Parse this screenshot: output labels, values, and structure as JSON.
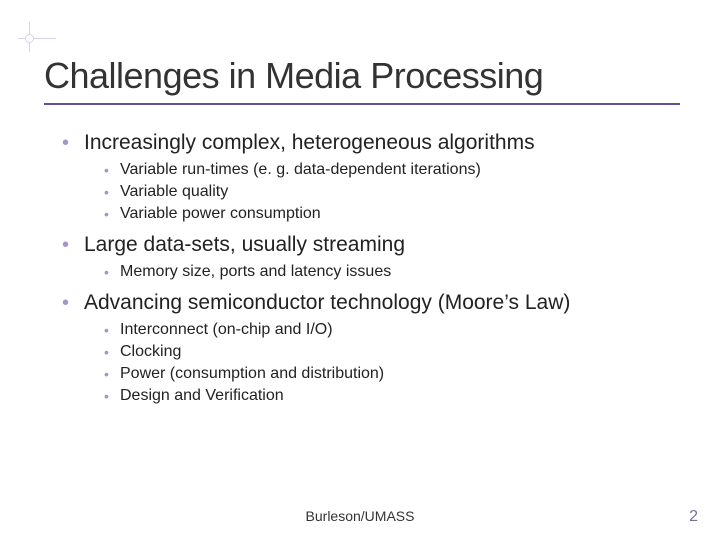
{
  "colors": {
    "rule": "#5f50a0",
    "bullet": "#a593c9",
    "deco": "#d9d2e9",
    "pagenum": "#7b6ca8",
    "text": "#222222",
    "background": "#ffffff"
  },
  "typography": {
    "title_fontsize": 36,
    "lvl1_fontsize": 21,
    "lvl2_fontsize": 16,
    "footer_fontsize": 14,
    "family": "Verdana, Tahoma, Arial, sans-serif"
  },
  "title": "Challenges in Media Processing",
  "bullets": [
    {
      "text": "Increasingly complex, heterogeneous algorithms",
      "sub": [
        "Variable run-times (e. g. data-dependent iterations)",
        "Variable quality",
        "Variable power consumption"
      ]
    },
    {
      "text": "Large data-sets, usually streaming",
      "sub": [
        "Memory size, ports and latency issues"
      ]
    },
    {
      "text": "Advancing semiconductor technology (Moore’s Law)",
      "sub": [
        "Interconnect (on-chip and I/O)",
        "Clocking",
        "Power (consumption and distribution)",
        "Design and Verification"
      ]
    }
  ],
  "footer": "Burleson/UMASS",
  "page_number": "2"
}
